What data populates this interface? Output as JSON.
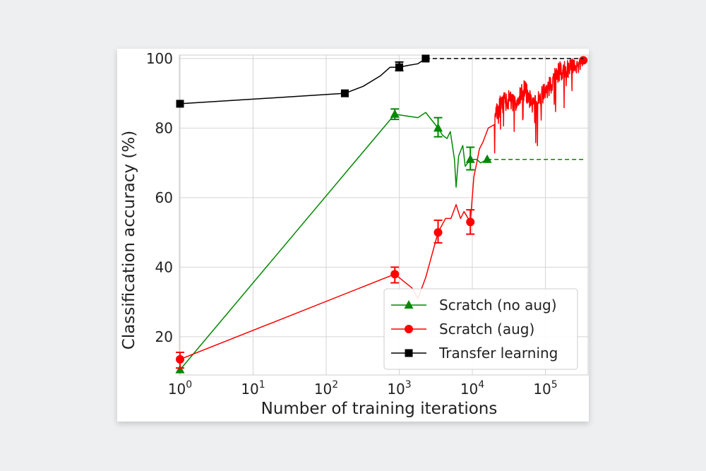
{
  "chart_data": {
    "type": "line",
    "xlabel": "Number of training iterations",
    "ylabel": "Classification accuracy (%)",
    "x_scale": "log",
    "xlim": [
      1,
      350000
    ],
    "ylim": [
      9,
      101
    ],
    "grid": true,
    "legend_position": "bottom-right",
    "x_ticks": [
      {
        "value": 1,
        "base": "10",
        "exp": "0"
      },
      {
        "value": 10,
        "base": "10",
        "exp": "1"
      },
      {
        "value": 100,
        "base": "10",
        "exp": "2"
      },
      {
        "value": 1000,
        "base": "10",
        "exp": "3"
      },
      {
        "value": 10000,
        "base": "10",
        "exp": "4"
      },
      {
        "value": 100000,
        "base": "10",
        "exp": "5"
      }
    ],
    "y_ticks": [
      20,
      40,
      60,
      80,
      100
    ],
    "series": [
      {
        "name": "Scratch (no aug)",
        "color": "#008800",
        "marker": "triangle",
        "line": [
          [
            1,
            10.5
          ],
          [
            870,
            84
          ],
          [
            1800,
            83
          ],
          [
            2300,
            84.5
          ],
          [
            3400,
            80
          ],
          [
            3900,
            78
          ],
          [
            4500,
            77
          ],
          [
            5000,
            79
          ],
          [
            5700,
            71
          ],
          [
            6000,
            63
          ],
          [
            6500,
            72
          ],
          [
            7400,
            75
          ],
          [
            8000,
            69
          ],
          [
            9400,
            71
          ],
          [
            10500,
            71
          ],
          [
            11500,
            71
          ],
          [
            13000,
            70
          ],
          [
            16000,
            71
          ]
        ],
        "markers": [
          [
            1,
            10.5
          ],
          [
            870,
            84
          ],
          [
            3400,
            80
          ],
          [
            9400,
            71
          ],
          [
            16000,
            71
          ]
        ],
        "error_bars": [
          [
            870,
            82.5,
            85.5
          ],
          [
            3400,
            77.5,
            83
          ],
          [
            9400,
            68,
            74.5
          ]
        ],
        "dashed_extension": [
          [
            16000,
            71
          ],
          [
            330000,
            71
          ]
        ]
      },
      {
        "name": "Scratch (aug)",
        "color": "#ff0000",
        "marker": "circle",
        "line": [
          [
            1,
            13.5
          ],
          [
            870,
            38
          ],
          [
            1500,
            34
          ],
          [
            1800,
            31
          ],
          [
            2300,
            37
          ],
          [
            3400,
            50
          ],
          [
            4300,
            54
          ],
          [
            5100,
            54
          ],
          [
            6000,
            58
          ],
          [
            6900,
            54
          ],
          [
            7700,
            56
          ],
          [
            9400,
            53
          ],
          [
            10500,
            66
          ],
          [
            11500,
            70
          ],
          [
            12500,
            74
          ],
          [
            14000,
            76
          ],
          [
            16500,
            80
          ],
          [
            20000,
            84
          ],
          [
            25000,
            87
          ],
          [
            30000,
            88
          ],
          [
            40000,
            87
          ],
          [
            50000,
            91
          ],
          [
            60000,
            89
          ],
          [
            70000,
            86
          ],
          [
            85000,
            89
          ],
          [
            100000,
            90
          ],
          [
            120000,
            93
          ],
          [
            150000,
            96
          ],
          [
            200000,
            97
          ],
          [
            250000,
            98
          ],
          [
            330000,
            99.5
          ]
        ],
        "noise": true,
        "markers": [
          [
            1,
            13.5
          ],
          [
            870,
            38
          ],
          [
            3400,
            50
          ],
          [
            9400,
            53
          ],
          [
            330000,
            99.5
          ]
        ],
        "error_bars": [
          [
            1,
            11,
            15.5
          ],
          [
            870,
            35.5,
            40
          ],
          [
            3400,
            47,
            53.5
          ],
          [
            9400,
            49.5,
            56.5
          ]
        ]
      },
      {
        "name": "Transfer learning",
        "color": "#000000",
        "marker": "square",
        "line": [
          [
            1,
            87
          ],
          [
            180,
            90
          ],
          [
            320,
            92
          ],
          [
            550,
            95
          ],
          [
            750,
            97.5
          ],
          [
            1000,
            97.5
          ],
          [
            1300,
            98
          ],
          [
            1800,
            98.5
          ],
          [
            2300,
            100
          ]
        ],
        "markers": [
          [
            1,
            87
          ],
          [
            180,
            90
          ],
          [
            1000,
            97.5
          ],
          [
            2300,
            100
          ]
        ],
        "error_bars": [
          [
            1000,
            96.5,
            99
          ]
        ],
        "dashed_extension": [
          [
            2300,
            100
          ],
          [
            330000,
            100
          ]
        ]
      }
    ]
  }
}
